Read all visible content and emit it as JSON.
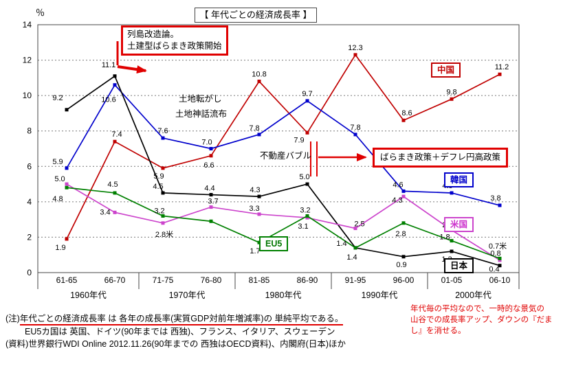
{
  "title": "【 年代ごとの経済成長率 】",
  "colors": {
    "accent_red": "#e00000"
  },
  "y_axis": {
    "unit": "％",
    "ticks": [
      0,
      2,
      4,
      6,
      8,
      10,
      12,
      14
    ]
  },
  "chart_data": {
    "type": "line",
    "title": "【 年代ごとの経済成長率 】",
    "categories": [
      "61-65",
      "66-70",
      "71-75",
      "76-80",
      "81-85",
      "86-90",
      "91-95",
      "96-00",
      "01-05",
      "06-10"
    ],
    "decades": [
      "1960年代",
      "1970年代",
      "1980年代",
      "1990年代",
      "2000年代"
    ],
    "ylim": [
      0,
      14
    ],
    "grid": true,
    "legend_position": "inline-boxes",
    "series": [
      {
        "name": "中国",
        "color": "#c00000",
        "values": [
          1.9,
          7.4,
          5.9,
          6.6,
          10.8,
          7.9,
          12.3,
          8.6,
          9.8,
          11.2
        ],
        "labels": [
          "1.9",
          "7.4",
          "5.9",
          "6.6",
          "10.8",
          "7.9",
          "12.3",
          "8.6",
          "9.8",
          "11.2"
        ]
      },
      {
        "name": "韓国",
        "color": "#0000cc",
        "values": [
          5.9,
          10.6,
          7.6,
          7.0,
          7.8,
          9.7,
          7.8,
          4.6,
          4.5,
          3.8
        ],
        "labels": [
          "5.9",
          "10.6",
          "7.6",
          "7.0",
          "7.8",
          "9.7",
          "7.8",
          "4.6",
          "4.5",
          "3.8"
        ]
      },
      {
        "name": "日本",
        "color": "#000000",
        "values": [
          9.2,
          11.1,
          4.5,
          4.4,
          4.3,
          5.0,
          1.4,
          0.9,
          1.2,
          0.4
        ],
        "labels": [
          "9.2",
          "11.1",
          "4.5",
          "4.4",
          "4.3",
          "5.0",
          "1.4",
          "0.9",
          "1.2",
          "0.4"
        ]
      },
      {
        "name": "米国",
        "color": "#cc44cc",
        "values": [
          5.0,
          3.4,
          2.8,
          3.7,
          3.3,
          3.1,
          2.5,
          4.3,
          2.4,
          0.7
        ],
        "labels": [
          "5.0",
          "3.4",
          "2.8米",
          "3.7",
          "3.3",
          "3.1",
          "2.5",
          "4.3",
          "2.4",
          "0.7米"
        ]
      },
      {
        "name": "EU5",
        "color": "#008000",
        "values": [
          4.8,
          4.5,
          3.2,
          2.9,
          1.7,
          3.2,
          1.4,
          2.8,
          1.8,
          0.8
        ],
        "labels": [
          "4.8",
          "4.5",
          "3.2",
          "",
          "1.7",
          "3.2",
          "1.4",
          "2.8",
          "1.8",
          "0.8"
        ]
      }
    ]
  },
  "annotations": {
    "retto": {
      "line1": "列島改造論。",
      "line2": "土建型ばらまき政策開始"
    },
    "tochi_korogashi": "土地転がし",
    "tochi_shinwa": "土地神話流布",
    "fudosan_bubble": "不動産バブル",
    "baramaki_box": "ばらまき政策＋デフレ円高政策"
  },
  "notes": {
    "line1_prefix": "(注)",
    "line1_underlined": "年代ごとの経済成長率 は 各年の成長率(実質GDP対前年増減率)の 単純平均である。",
    "line2": "EU5カ国は 英国、ドイツ(90年までは 西独)、フランス、イタリア、スウェーデン",
    "line3": "(資料)世界銀行WDI Online  2012.11.26(90年までの 西独はOECD資料)、内閣府(日本)ほか"
  },
  "red_note": {
    "lines": [
      "年代毎の平均なので、一時的な景気の",
      "山谷での成長率アップ、ダウンの『だま",
      "し』を消せる。"
    ]
  }
}
